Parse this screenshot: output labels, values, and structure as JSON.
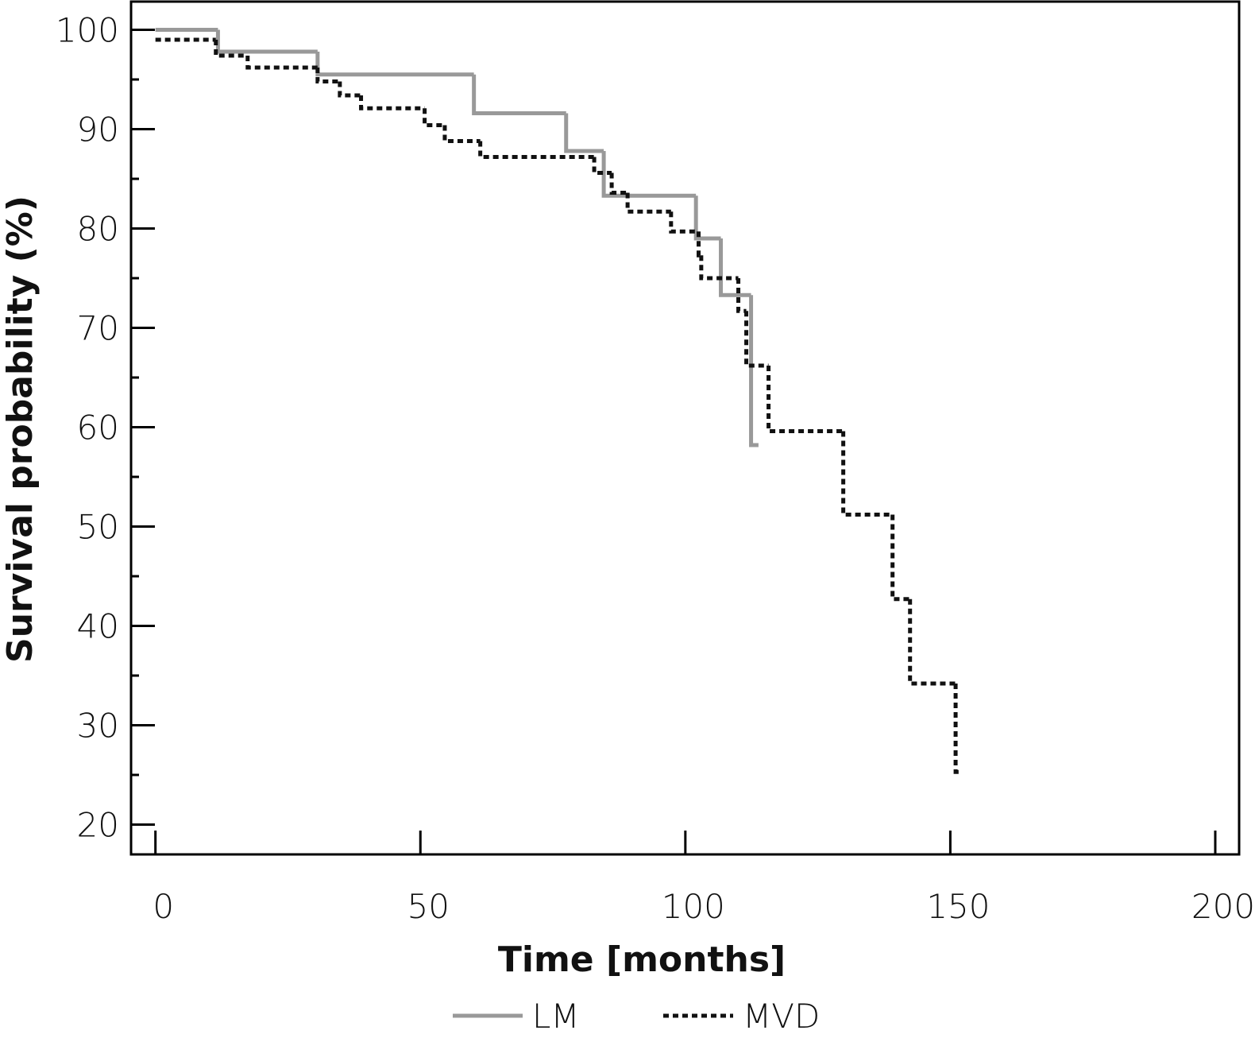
{
  "chart_data": {
    "type": "line",
    "step": true,
    "xlabel": "Time [months]",
    "ylabel": "Survival probability (%)",
    "xlim": [
      -4.6,
      204.5
    ],
    "ylim": [
      17,
      103
    ],
    "xticks": [
      0,
      50,
      100,
      150,
      200
    ],
    "yticks": [
      20,
      30,
      40,
      50,
      60,
      70,
      80,
      90,
      100
    ],
    "yticks_minor": [
      25,
      35,
      45,
      55,
      65,
      75,
      85,
      95
    ],
    "grid": false,
    "legend": "bottom",
    "series": [
      {
        "name": "LM",
        "color": "#999999",
        "dash": "solid",
        "x": [
          0,
          11.8,
          30.6,
          60.1,
          77.5,
          84.6,
          102,
          106.7,
          112.4,
          113.8
        ],
        "values": [
          100,
          97.8,
          95.5,
          91.6,
          87.8,
          83.3,
          79.0,
          73.3,
          58.2,
          58.2
        ]
      },
      {
        "name": "MVD",
        "color": "#111111",
        "dash": "dotted",
        "x": [
          0,
          11.4,
          17.4,
          30.6,
          34.8,
          38.8,
          50.8,
          54.6,
          61.3,
          82.8,
          86.1,
          89.1,
          97.3,
          102.5,
          103,
          110,
          111.5,
          115.7,
          129.8,
          139.1,
          142.4,
          151,
          152.3
        ],
        "values": [
          99.0,
          97.4,
          96.2,
          94.8,
          93.4,
          92.1,
          90.4,
          88.8,
          87.2,
          85.6,
          83.6,
          81.7,
          79.7,
          77.3,
          75.0,
          71.7,
          66.2,
          59.6,
          51.2,
          42.7,
          34.2,
          25.3,
          25.3
        ]
      }
    ]
  }
}
